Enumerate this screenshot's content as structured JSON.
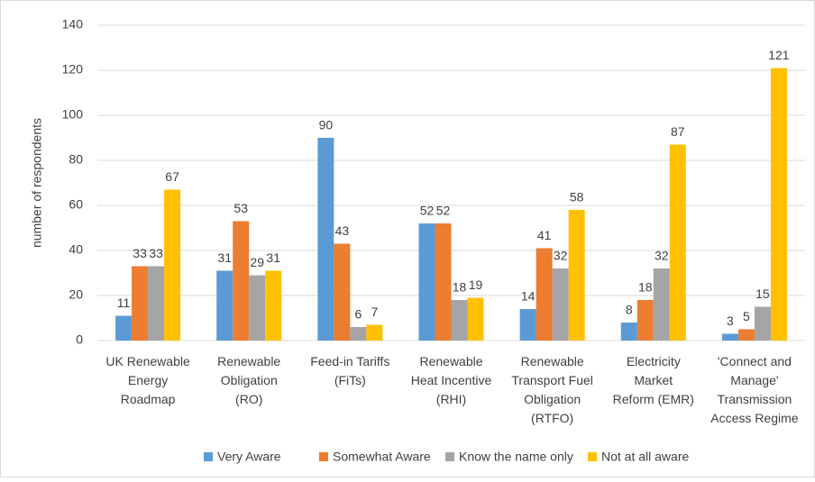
{
  "chart_data": {
    "type": "bar",
    "y_label": "number of respondents",
    "categories": [
      "UK Renewable\nEnergy\nRoadmap",
      "Renewable\nObligation\n(RO)",
      "Feed-in Tariffs\n(FiTs)",
      "Renewable\nHeat Incentive\n(RHI)",
      "Renewable\nTransport Fuel\nObligation\n(RTFO)",
      "Electricity\nMarket\nReform (EMR)",
      "'Connect and\nManage'\nTransmission\nAccess Regime"
    ],
    "series": [
      {
        "name": "Very Aware",
        "color": "#5b9bd5",
        "values": [
          11,
          31,
          90,
          52,
          14,
          8,
          3
        ]
      },
      {
        "name": "Somewhat Aware",
        "color": "#ed7d31",
        "values": [
          33,
          53,
          43,
          52,
          41,
          18,
          5
        ]
      },
      {
        "name": "Know the name only",
        "color": "#a5a5a5",
        "values": [
          33,
          29,
          6,
          18,
          32,
          32,
          15
        ]
      },
      {
        "name": "Not at all aware",
        "color": "#ffc000",
        "values": [
          67,
          31,
          7,
          19,
          58,
          87,
          121
        ]
      }
    ],
    "ylim": [
      0,
      140
    ],
    "yticks": [
      0,
      20,
      40,
      60,
      80,
      100,
      120,
      140
    ],
    "grid": true,
    "legend": "bottom"
  }
}
